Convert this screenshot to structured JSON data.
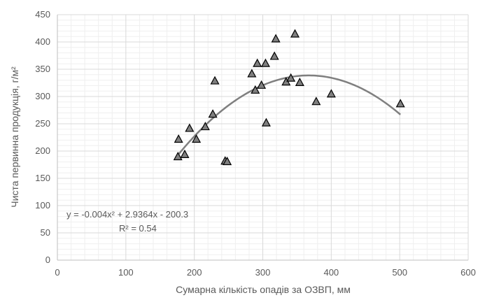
{
  "chart_data": {
    "type": "scatter",
    "xlabel": "Сумарна кількість опадів за ОЗВП, мм",
    "ylabel": "Чиста первинна продукція, г/м²",
    "xlim": [
      0,
      600
    ],
    "ylim": [
      0,
      450
    ],
    "x_ticks": [
      0,
      100,
      200,
      300,
      400,
      500,
      600
    ],
    "y_ticks": [
      0,
      50,
      100,
      150,
      200,
      250,
      300,
      350,
      400,
      450
    ],
    "grid": true,
    "legend": "none",
    "marker": "triangle",
    "colors": {
      "marker_fill": "#7f7f7f",
      "marker_edge": "#000000",
      "trend": "#7f7f7f",
      "grid": "#d9d9d9",
      "text": "#595959"
    },
    "points": [
      {
        "x": 176,
        "y": 190
      },
      {
        "x": 177,
        "y": 222
      },
      {
        "x": 186,
        "y": 194
      },
      {
        "x": 193,
        "y": 242
      },
      {
        "x": 203,
        "y": 222
      },
      {
        "x": 216,
        "y": 245
      },
      {
        "x": 227,
        "y": 268
      },
      {
        "x": 230,
        "y": 329
      },
      {
        "x": 245,
        "y": 182
      },
      {
        "x": 248,
        "y": 181
      },
      {
        "x": 284,
        "y": 342
      },
      {
        "x": 289,
        "y": 312
      },
      {
        "x": 292,
        "y": 361
      },
      {
        "x": 298,
        "y": 321
      },
      {
        "x": 304,
        "y": 361
      },
      {
        "x": 305,
        "y": 252
      },
      {
        "x": 317,
        "y": 374
      },
      {
        "x": 319,
        "y": 406
      },
      {
        "x": 334,
        "y": 327
      },
      {
        "x": 341,
        "y": 334
      },
      {
        "x": 347,
        "y": 415
      },
      {
        "x": 354,
        "y": 326
      },
      {
        "x": 378,
        "y": 291
      },
      {
        "x": 400,
        "y": 305
      },
      {
        "x": 501,
        "y": 287
      }
    ],
    "trendline": {
      "type": "polynomial",
      "coefficients": [
        -0.004,
        2.9364,
        -200.3
      ],
      "x_range": [
        176,
        501
      ]
    },
    "annotations": {
      "equation": "y = -0.004x² + 2.9364x - 200.3",
      "r_squared": "R² = 0.54"
    }
  }
}
